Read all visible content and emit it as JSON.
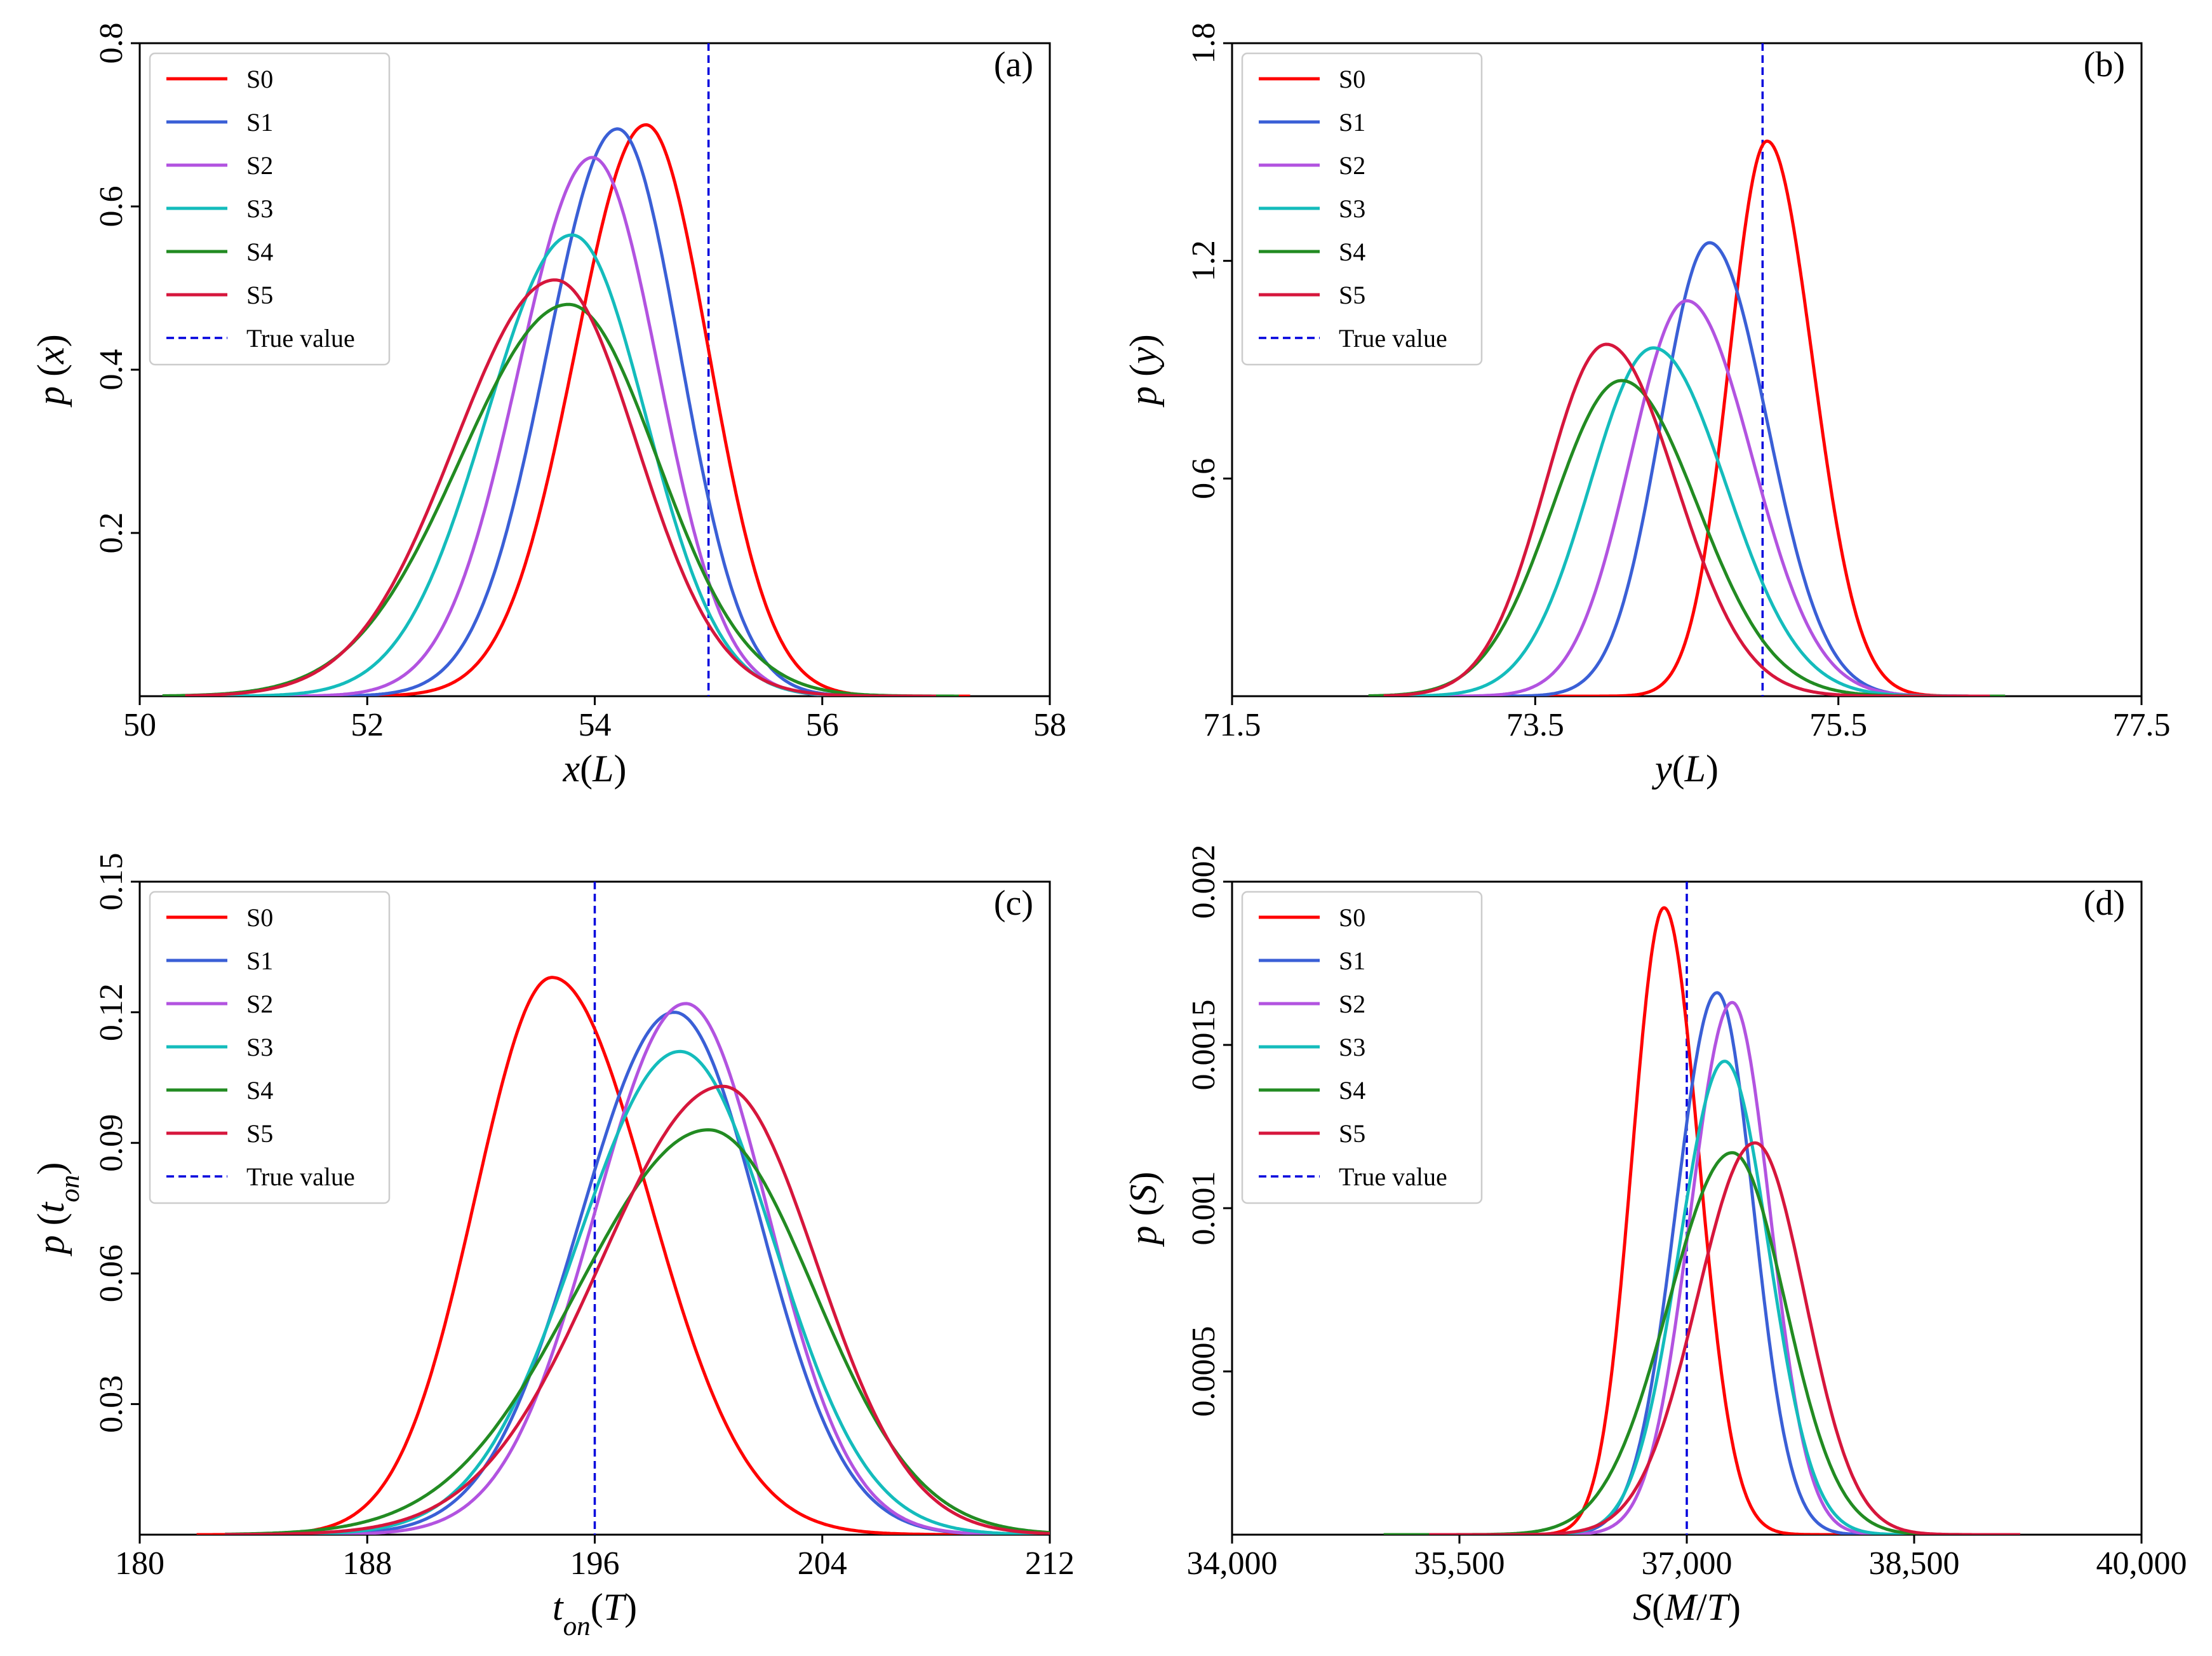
{
  "chart_data": [
    {
      "type": "line",
      "panel_label": "(a)",
      "xlabel": "x(L)",
      "xlabel_parts": [
        {
          "t": "x",
          "i": true
        },
        {
          "t": "(",
          "i": false
        },
        {
          "t": "L",
          "i": true
        },
        {
          "t": ")",
          "i": false
        }
      ],
      "ylabel": "p (x)",
      "ylabel_parts": [
        {
          "t": "p",
          "i": true
        },
        {
          "t": " (",
          "i": false
        },
        {
          "t": "x",
          "i": true
        },
        {
          "t": ")",
          "i": false
        }
      ],
      "xlim": [
        50,
        58
      ],
      "ylim": [
        0,
        0.8
      ],
      "xticks": [
        50,
        52,
        54,
        56,
        58
      ],
      "xtick_labels": [
        "50",
        "52",
        "54",
        "56",
        "58"
      ],
      "yticks": [
        0.2,
        0.4,
        0.6,
        0.8
      ],
      "ytick_labels": [
        "0.2",
        "0.4",
        "0.6",
        "0.8"
      ],
      "true_value": 55,
      "true_value_label": "True value",
      "legend_position": "top-left",
      "series": [
        {
          "name": "S0",
          "color": "#ff0000",
          "mu": 54.45,
          "peak": 0.7,
          "sigL": 0.62,
          "sigR": 0.55,
          "range": [
            51.5,
            57.3
          ]
        },
        {
          "name": "S1",
          "color": "#3a5fd6",
          "mu": 54.2,
          "peak": 0.695,
          "sigL": 0.62,
          "sigR": 0.55,
          "range": [
            51.2,
            57.0
          ]
        },
        {
          "name": "S2",
          "color": "#b253e0",
          "mu": 53.98,
          "peak": 0.66,
          "sigL": 0.65,
          "sigR": 0.58,
          "range": [
            51.0,
            57.0
          ]
        },
        {
          "name": "S3",
          "color": "#14bcbc",
          "mu": 53.8,
          "peak": 0.565,
          "sigL": 0.75,
          "sigR": 0.65,
          "range": [
            50.5,
            57.0
          ]
        },
        {
          "name": "S4",
          "color": "#228b22",
          "mu": 53.77,
          "peak": 0.48,
          "sigL": 0.95,
          "sigR": 0.78,
          "range": [
            50.2,
            57.2
          ]
        },
        {
          "name": "S5",
          "color": "#d6163c",
          "mu": 53.65,
          "peak": 0.51,
          "sigL": 0.88,
          "sigR": 0.72,
          "range": [
            50.4,
            57.0
          ]
        }
      ]
    },
    {
      "type": "line",
      "panel_label": "(b)",
      "xlabel": "y(L)",
      "xlabel_parts": [
        {
          "t": "y",
          "i": true
        },
        {
          "t": "(",
          "i": false
        },
        {
          "t": "L",
          "i": true
        },
        {
          "t": ")",
          "i": false
        }
      ],
      "ylabel": "p (y)",
      "ylabel_parts": [
        {
          "t": "p",
          "i": true
        },
        {
          "t": " (",
          "i": false
        },
        {
          "t": "y",
          "i": true
        },
        {
          "t": ")",
          "i": false
        }
      ],
      "xlim": [
        71.5,
        77.5
      ],
      "ylim": [
        0,
        1.8
      ],
      "xticks": [
        71.5,
        73.5,
        75.5,
        77.5
      ],
      "xtick_labels": [
        "71.5",
        "73.5",
        "75.5",
        "77.5"
      ],
      "yticks": [
        0.6,
        1.2,
        1.8
      ],
      "ytick_labels": [
        "0.6",
        "1.2",
        "1.8"
      ],
      "true_value": 75,
      "true_value_label": "True value",
      "legend_position": "top-left",
      "series": [
        {
          "name": "S0",
          "color": "#ff0000",
          "mu": 75.03,
          "peak": 1.53,
          "sigL": 0.25,
          "sigR": 0.3,
          "range": [
            73.5,
            76.4
          ]
        },
        {
          "name": "S1",
          "color": "#3a5fd6",
          "mu": 74.65,
          "peak": 1.25,
          "sigL": 0.32,
          "sigR": 0.38,
          "range": [
            73.0,
            76.5
          ]
        },
        {
          "name": "S2",
          "color": "#b253e0",
          "mu": 74.5,
          "peak": 1.09,
          "sigL": 0.37,
          "sigR": 0.43,
          "range": [
            72.8,
            76.5
          ]
        },
        {
          "name": "S3",
          "color": "#14bcbc",
          "mu": 74.28,
          "peak": 0.96,
          "sigL": 0.42,
          "sigR": 0.48,
          "range": [
            72.6,
            76.6
          ]
        },
        {
          "name": "S4",
          "color": "#228b22",
          "mu": 74.07,
          "peak": 0.87,
          "sigL": 0.45,
          "sigR": 0.5,
          "range": [
            72.4,
            76.6
          ]
        },
        {
          "name": "S5",
          "color": "#d6163c",
          "mu": 73.97,
          "peak": 0.97,
          "sigL": 0.4,
          "sigR": 0.46,
          "range": [
            72.5,
            76.5
          ]
        }
      ]
    },
    {
      "type": "line",
      "panel_label": "(c)",
      "xlabel": "ton(T)",
      "xlabel_parts": [
        {
          "t": "t",
          "i": true
        },
        {
          "t": "on",
          "i": true,
          "sub": true
        },
        {
          "t": "(",
          "i": false
        },
        {
          "t": "T",
          "i": true
        },
        {
          "t": ")",
          "i": false
        }
      ],
      "ylabel": "p (ton)",
      "ylabel_parts": [
        {
          "t": "p",
          "i": true
        },
        {
          "t": " (",
          "i": false
        },
        {
          "t": "t",
          "i": true
        },
        {
          "t": "on",
          "i": true,
          "sub": true
        },
        {
          "t": ")",
          "i": false
        }
      ],
      "xlim": [
        180,
        212
      ],
      "ylim": [
        0,
        0.15
      ],
      "xticks": [
        180,
        188,
        196,
        204,
        212
      ],
      "xtick_labels": [
        "180",
        "188",
        "196",
        "204",
        "212"
      ],
      "yticks": [
        0.03,
        0.06,
        0.09,
        0.12,
        0.15
      ],
      "ytick_labels": [
        "0.03",
        "0.06",
        "0.09",
        "0.12",
        "0.15"
      ],
      "true_value": 196,
      "true_value_label": "True value",
      "legend_position": "top-left",
      "series": [
        {
          "name": "S0",
          "color": "#ff0000",
          "mu": 194.5,
          "peak": 0.128,
          "sigL": 2.7,
          "sigR": 3.4,
          "range": [
            182,
            210
          ]
        },
        {
          "name": "S1",
          "color": "#3a5fd6",
          "mu": 198.8,
          "peak": 0.12,
          "sigL": 3.3,
          "sigR": 3.0,
          "range": [
            183,
            212
          ]
        },
        {
          "name": "S2",
          "color": "#b253e0",
          "mu": 199.2,
          "peak": 0.122,
          "sigL": 3.2,
          "sigR": 2.9,
          "range": [
            183,
            212
          ]
        },
        {
          "name": "S3",
          "color": "#14bcbc",
          "mu": 199.0,
          "peak": 0.111,
          "sigL": 3.6,
          "sigR": 3.3,
          "range": [
            183,
            212
          ]
        },
        {
          "name": "S4",
          "color": "#228b22",
          "mu": 200.0,
          "peak": 0.093,
          "sigL": 4.6,
          "sigR": 3.7,
          "range": [
            183,
            212
          ]
        },
        {
          "name": "S5",
          "color": "#d6163c",
          "mu": 200.5,
          "peak": 0.103,
          "sigL": 4.3,
          "sigR": 3.3,
          "range": [
            183,
            212
          ]
        }
      ]
    },
    {
      "type": "line",
      "panel_label": "(d)",
      "xlabel": "S(M/T)",
      "xlabel_parts": [
        {
          "t": "S",
          "i": true
        },
        {
          "t": "(",
          "i": false
        },
        {
          "t": "M",
          "i": true
        },
        {
          "t": "/",
          "i": false
        },
        {
          "t": "T",
          "i": true
        },
        {
          "t": ")",
          "i": false
        }
      ],
      "ylabel": "p (S)",
      "ylabel_parts": [
        {
          "t": "p",
          "i": true
        },
        {
          "t": " (",
          "i": false
        },
        {
          "t": "S",
          "i": true
        },
        {
          "t": ")",
          "i": false
        }
      ],
      "xlim": [
        34000,
        40000
      ],
      "ylim": [
        0,
        0.002
      ],
      "xticks": [
        34000,
        35500,
        37000,
        38500,
        40000
      ],
      "xtick_labels": [
        "34,000",
        "35,500",
        "37,000",
        "38,500",
        "40,000"
      ],
      "yticks": [
        0.0005,
        0.001,
        0.0015,
        0.002
      ],
      "ytick_labels": [
        "0.0005",
        "0.001",
        "0.0015",
        "0.002"
      ],
      "true_value": 37000,
      "true_value_label": "True value",
      "legend_position": "top-left",
      "series": [
        {
          "name": "S0",
          "color": "#ff0000",
          "mu": 36850,
          "peak": 0.00192,
          "sigL": 210,
          "sigR": 230,
          "range": [
            35600,
            38200
          ]
        },
        {
          "name": "S1",
          "color": "#3a5fd6",
          "mu": 37200,
          "peak": 0.00166,
          "sigL": 270,
          "sigR": 240,
          "range": [
            35300,
            38700
          ]
        },
        {
          "name": "S2",
          "color": "#b253e0",
          "mu": 37300,
          "peak": 0.00163,
          "sigL": 275,
          "sigR": 250,
          "range": [
            35300,
            38700
          ]
        },
        {
          "name": "S3",
          "color": "#14bcbc",
          "mu": 37250,
          "peak": 0.00145,
          "sigL": 300,
          "sigR": 290,
          "range": [
            35300,
            38800
          ]
        },
        {
          "name": "S4",
          "color": "#228b22",
          "mu": 37300,
          "peak": 0.00117,
          "sigL": 420,
          "sigR": 350,
          "range": [
            35000,
            39000
          ]
        },
        {
          "name": "S5",
          "color": "#d6163c",
          "mu": 37450,
          "peak": 0.0012,
          "sigL": 380,
          "sigR": 330,
          "range": [
            35300,
            39200
          ]
        }
      ]
    }
  ]
}
